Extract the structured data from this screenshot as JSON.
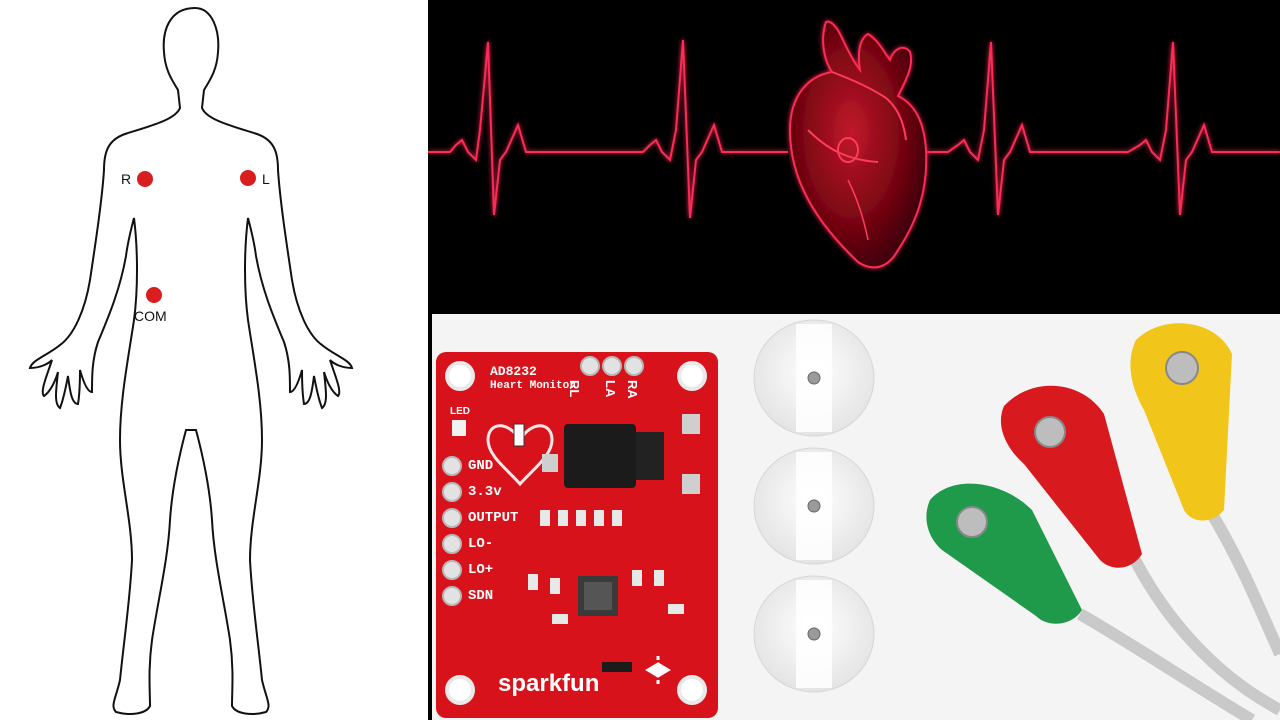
{
  "body_diagram": {
    "electrode_labels": {
      "right": "R",
      "left": "L",
      "common": "COM"
    },
    "marker_color": "#d81e1e"
  },
  "ecg_banner": {
    "trace_color": "#ff2a55",
    "background": "#000000"
  },
  "board": {
    "chip_name": "AD8232",
    "subtitle": "Heart Monitor",
    "brand": "sparkfun",
    "led_label": "LED",
    "top_pins": [
      "RL",
      "LA",
      "RA"
    ],
    "side_pins": [
      "GND",
      "3.3v",
      "OUTPUT",
      "LO-",
      "LO+",
      "SDN"
    ],
    "board_color": "#d8121b"
  },
  "electrode_pads": {
    "count": 3
  },
  "lead_cables": {
    "colors": {
      "green": "#1f9a4a",
      "red": "#d8191e",
      "yellow": "#f2c51a"
    }
  }
}
